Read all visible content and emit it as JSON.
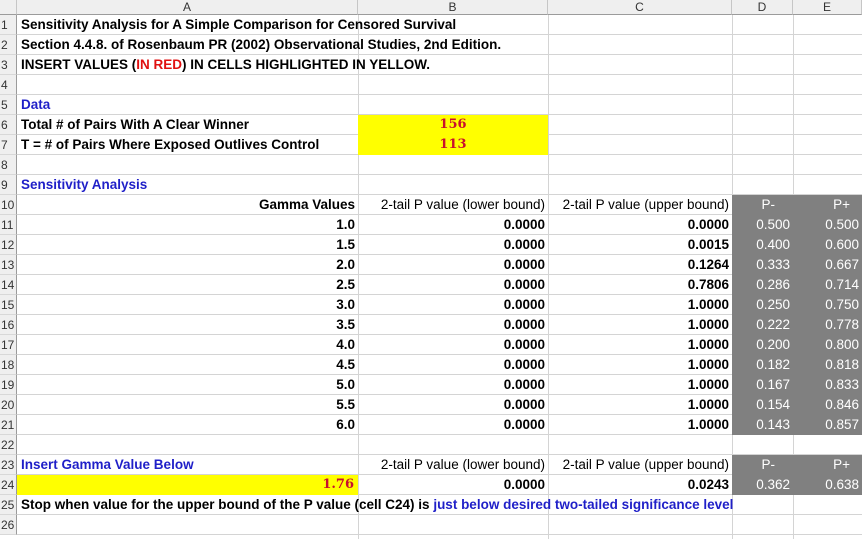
{
  "columns": [
    "A",
    "B",
    "C",
    "D",
    "E"
  ],
  "rows": [
    "1",
    "2",
    "3",
    "4",
    "5",
    "6",
    "7",
    "8",
    "9",
    "10",
    "11",
    "12",
    "13",
    "14",
    "15",
    "16",
    "17",
    "18",
    "19",
    "20",
    "21",
    "22",
    "23",
    "24",
    "25",
    "26"
  ],
  "title": {
    "line1": "Sensitivity Analysis for A Simple Comparison for Censored Survival",
    "line2": "Section 4.4.8. of Rosenbaum PR (2002) Observational Studies, 2nd Edition.",
    "line3_pre": "INSERT VALUES (",
    "line3_red": "IN RED",
    "line3_post": ") IN CELLS HIGHLIGHTED IN YELLOW."
  },
  "data_section": {
    "heading": "Data",
    "pairs_label": "Total # of Pairs With A Clear Winner",
    "pairs_value": "156",
    "t_label": "T = # of Pairs Where Exposed Outlives Control",
    "t_value": "113"
  },
  "sensitivity": {
    "heading": "Sensitivity Analysis",
    "col_gamma": "Gamma Values",
    "col_lower": "2-tail P value (lower bound)",
    "col_upper": "2-tail P value (upper bound)",
    "col_pminus": "P-",
    "col_pplus": "P+",
    "rows": [
      {
        "gamma": "1.0",
        "lower": "0.0000",
        "upper": "0.0000",
        "pminus": "0.500",
        "pplus": "0.500"
      },
      {
        "gamma": "1.5",
        "lower": "0.0000",
        "upper": "0.0015",
        "pminus": "0.400",
        "pplus": "0.600"
      },
      {
        "gamma": "2.0",
        "lower": "0.0000",
        "upper": "0.1264",
        "pminus": "0.333",
        "pplus": "0.667"
      },
      {
        "gamma": "2.5",
        "lower": "0.0000",
        "upper": "0.7806",
        "pminus": "0.286",
        "pplus": "0.714"
      },
      {
        "gamma": "3.0",
        "lower": "0.0000",
        "upper": "1.0000",
        "pminus": "0.250",
        "pplus": "0.750"
      },
      {
        "gamma": "3.5",
        "lower": "0.0000",
        "upper": "1.0000",
        "pminus": "0.222",
        "pplus": "0.778"
      },
      {
        "gamma": "4.0",
        "lower": "0.0000",
        "upper": "1.0000",
        "pminus": "0.200",
        "pplus": "0.800"
      },
      {
        "gamma": "4.5",
        "lower": "0.0000",
        "upper": "1.0000",
        "pminus": "0.182",
        "pplus": "0.818"
      },
      {
        "gamma": "5.0",
        "lower": "0.0000",
        "upper": "1.0000",
        "pminus": "0.167",
        "pplus": "0.833"
      },
      {
        "gamma": "5.5",
        "lower": "0.0000",
        "upper": "1.0000",
        "pminus": "0.154",
        "pplus": "0.846"
      },
      {
        "gamma": "6.0",
        "lower": "0.0000",
        "upper": "1.0000",
        "pminus": "0.143",
        "pplus": "0.857"
      }
    ]
  },
  "insert_gamma": {
    "label": "Insert Gamma Value Below",
    "col_lower": "2-tail P value (lower bound)",
    "col_upper": "2-tail P value (upper bound)",
    "col_pminus": "P-",
    "col_pplus": "P+",
    "gamma": "1.76",
    "lower": "0.0000",
    "upper": "0.0243",
    "pminus": "0.362",
    "pplus": "0.638"
  },
  "footer": {
    "pre": "Stop when value for the upper bound of the P value (cell C24) is ",
    "blue": "just below desired two-tailed significance level"
  },
  "colors": {
    "input_fill": "#ffff00",
    "input_text": "#c8102e",
    "heading_blue": "#1f1fc8",
    "derived_fill": "#808080"
  }
}
